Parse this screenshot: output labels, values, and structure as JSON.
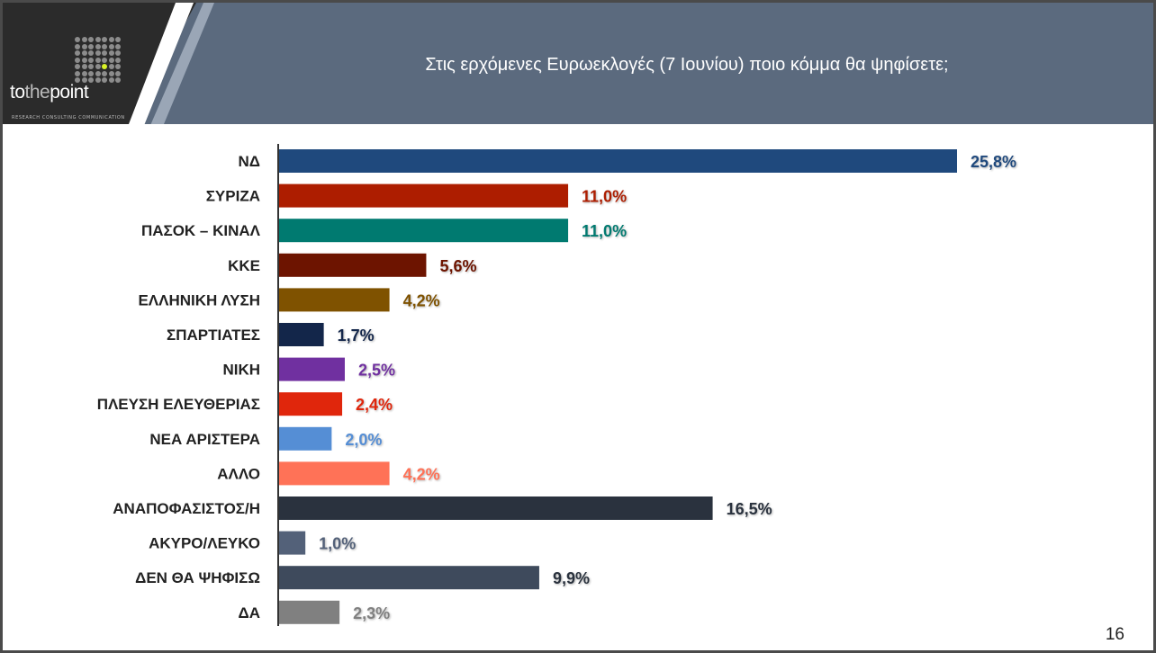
{
  "logo": {
    "name": "tothepoint",
    "tagline": "RESEARCH CONSULTING COMMUNICATION"
  },
  "header": {
    "title": "Στις ερχόμενες Ευρωεκλογές (7 Ιουνίου) ποιο κόμμα θα ψηφίσετε;"
  },
  "page_number": "16",
  "chart_data": {
    "type": "bar",
    "orientation": "horizontal",
    "categories": [
      "ΝΔ",
      "ΣΥΡΙΖΑ",
      "ΠΑΣΟΚ – ΚΙΝΑΛ",
      "ΚΚΕ",
      "ΕΛΛΗΝΙΚΗ ΛΥΣΗ",
      "ΣΠΑΡΤΙΑΤΕΣ",
      "ΝΙΚΗ",
      "ΠΛΕΥΣΗ ΕΛΕΥΘΕΡΙΑΣ",
      "ΝΕΑ ΑΡΙΣΤΕΡΑ",
      "ΑΛΛΟ",
      "ΑΝΑΠΟΦΑΣΙΣΤΟΣ/Η",
      "ΑΚΥΡΟ/ΛΕΥΚΟ",
      "ΔΕΝ ΘΑ ΨΗΦΙΣΩ",
      "ΔΑ"
    ],
    "values": [
      25.8,
      11.0,
      11.0,
      5.6,
      4.2,
      1.7,
      2.5,
      2.4,
      2.0,
      4.2,
      16.5,
      1.0,
      9.9,
      2.3
    ],
    "labels": [
      "25,8%",
      "11,0%",
      "11,0%",
      "5,6%",
      "4,2%",
      "1,7%",
      "2,5%",
      "2,4%",
      "2,0%",
      "4,2%",
      "16,5%",
      "1,0%",
      "9,9%",
      "2,3%"
    ],
    "colors": [
      "#1f497d",
      "#ad1d00",
      "#007a70",
      "#6d1400",
      "#7f5200",
      "#13264a",
      "#7030a0",
      "#e0260c",
      "#558ed5",
      "#ff7257",
      "#2a323e",
      "#536179",
      "#3e4a5c",
      "#808080"
    ],
    "label_colors": [
      "#1f497d",
      "#ad1d00",
      "#007a70",
      "#6d1400",
      "#7f5200",
      "#13264a",
      "#7030a0",
      "#e0260c",
      "#558ed5",
      "#ff7257",
      "#2a323e",
      "#536179",
      "#2a323e",
      "#808080"
    ],
    "xlim": [
      0,
      25.8
    ],
    "grid": false,
    "legend": "none"
  }
}
